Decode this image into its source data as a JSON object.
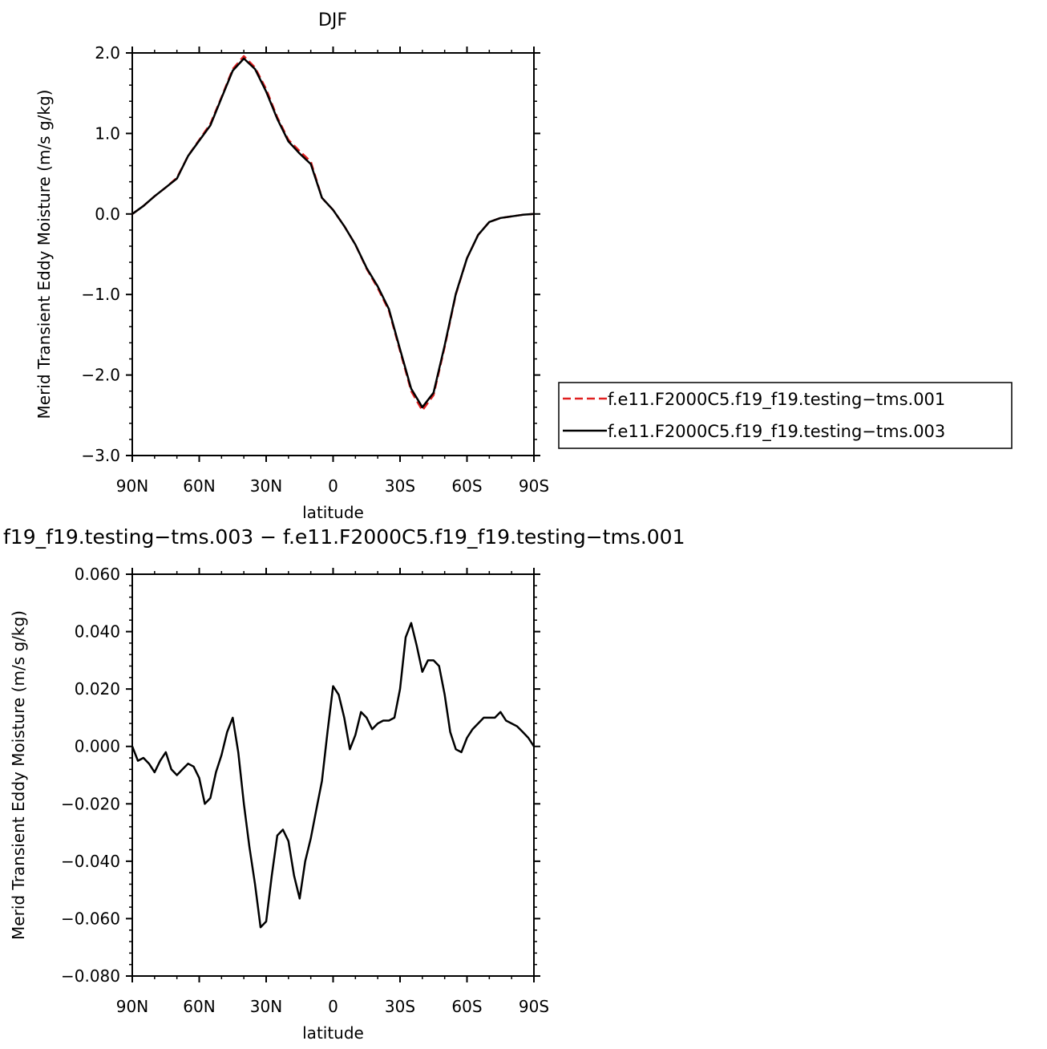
{
  "chart_data": [
    {
      "type": "line",
      "title": "DJF",
      "xlabel": "latitude",
      "ylabel": "Merid Transient Eddy Moisture (m/s g/kg)",
      "xlim": [
        90,
        -90
      ],
      "ylim": [
        -3.0,
        2.0
      ],
      "xticks": [
        {
          "value": 90,
          "label": "90N"
        },
        {
          "value": 60,
          "label": "60N"
        },
        {
          "value": 30,
          "label": "30N"
        },
        {
          "value": 0,
          "label": "0"
        },
        {
          "value": -30,
          "label": "30S"
        },
        {
          "value": -60,
          "label": "60S"
        },
        {
          "value": -90,
          "label": "90S"
        }
      ],
      "yticks": [
        {
          "value": 2.0,
          "label": "2.0"
        },
        {
          "value": 1.0,
          "label": "1.0"
        },
        {
          "value": 0.0,
          "label": "0.0"
        },
        {
          "value": -1.0,
          "label": "−1.0"
        },
        {
          "value": -2.0,
          "label": "−2.0"
        },
        {
          "value": -3.0,
          "label": "−3.0"
        }
      ],
      "legend_position": "right",
      "series": [
        {
          "name": "f.e11.F2000C5.f19_f19.testing−tms.001",
          "color": "#e02020",
          "dash": "dashed",
          "x": [
            90,
            85,
            80,
            75,
            70,
            65,
            60,
            55,
            50,
            45,
            40,
            35,
            30,
            25,
            20,
            15,
            10,
            5,
            0,
            -5,
            -10,
            -15,
            -20,
            -25,
            -30,
            -35,
            -40,
            -45,
            -50,
            -55,
            -60,
            -65,
            -70,
            -75,
            -80,
            -85,
            -90
          ],
          "y": [
            0.0,
            0.1,
            0.22,
            0.33,
            0.45,
            0.72,
            0.92,
            1.12,
            1.45,
            1.8,
            1.96,
            1.82,
            1.55,
            1.2,
            0.92,
            0.78,
            0.65,
            0.2,
            0.05,
            -0.15,
            -0.38,
            -0.68,
            -0.92,
            -1.2,
            -1.7,
            -2.2,
            -2.44,
            -2.25,
            -1.65,
            -1.0,
            -0.55,
            -0.26,
            -0.1,
            -0.05,
            -0.03,
            -0.01,
            0.0
          ]
        },
        {
          "name": "f.e11.F2000C5.f19_f19.testing−tms.003",
          "color": "#000000",
          "dash": "solid",
          "x": [
            90,
            85,
            80,
            75,
            70,
            65,
            60,
            55,
            50,
            45,
            40,
            35,
            30,
            25,
            20,
            15,
            10,
            5,
            0,
            -5,
            -10,
            -15,
            -20,
            -25,
            -30,
            -35,
            -40,
            -45,
            -50,
            -55,
            -60,
            -65,
            -70,
            -75,
            -80,
            -85,
            -90
          ],
          "y": [
            0.0,
            0.1,
            0.22,
            0.33,
            0.44,
            0.72,
            0.91,
            1.1,
            1.44,
            1.78,
            1.93,
            1.8,
            1.52,
            1.18,
            0.9,
            0.75,
            0.62,
            0.2,
            0.05,
            -0.15,
            -0.38,
            -0.67,
            -0.9,
            -1.18,
            -1.68,
            -2.17,
            -2.4,
            -2.22,
            -1.63,
            -0.99,
            -0.55,
            -0.26,
            -0.1,
            -0.05,
            -0.03,
            -0.01,
            0.0
          ]
        }
      ]
    },
    {
      "type": "line",
      "title": "f19_f19.testing−tms.003 − f.e11.F2000C5.f19_f19.testing−tms.001",
      "xlabel": "latitude",
      "ylabel": "Merid Transient Eddy Moisture (m/s g/kg)",
      "xlim": [
        90,
        -90
      ],
      "ylim": [
        -0.08,
        0.06
      ],
      "xticks": [
        {
          "value": 90,
          "label": "90N"
        },
        {
          "value": 60,
          "label": "60N"
        },
        {
          "value": 30,
          "label": "30N"
        },
        {
          "value": 0,
          "label": "0"
        },
        {
          "value": -30,
          "label": "30S"
        },
        {
          "value": -60,
          "label": "60S"
        },
        {
          "value": -90,
          "label": "90S"
        }
      ],
      "yticks": [
        {
          "value": 0.06,
          "label": "0.060"
        },
        {
          "value": 0.04,
          "label": "0.040"
        },
        {
          "value": 0.02,
          "label": "0.020"
        },
        {
          "value": 0.0,
          "label": "0.000"
        },
        {
          "value": -0.02,
          "label": "−0.020"
        },
        {
          "value": -0.04,
          "label": "−0.040"
        },
        {
          "value": -0.06,
          "label": "−0.060"
        },
        {
          "value": -0.08,
          "label": "−0.080"
        }
      ],
      "series": [
        {
          "color": "#000000",
          "dash": "solid",
          "x": [
            90,
            87.5,
            85,
            82.5,
            80,
            77.5,
            75,
            72.5,
            70,
            67.5,
            65,
            62.5,
            60,
            57.5,
            55,
            52.5,
            50,
            47.5,
            45,
            42.5,
            40,
            37.5,
            35,
            32.5,
            30,
            27.5,
            25,
            22.5,
            20,
            17.5,
            15,
            12.5,
            10,
            7.5,
            5,
            2.5,
            0,
            -2.5,
            -5,
            -7.5,
            -10,
            -12.5,
            -15,
            -17.5,
            -20,
            -22.5,
            -25,
            -27.5,
            -30,
            -32.5,
            -35,
            -37.5,
            -40,
            -42.5,
            -45,
            -47.5,
            -50,
            -52.5,
            -55,
            -57.5,
            -60,
            -62.5,
            -65,
            -67.5,
            -70,
            -72.5,
            -75,
            -77.5,
            -80,
            -82.5,
            -85,
            -87.5,
            -90
          ],
          "y": [
            0.0,
            -0.005,
            -0.004,
            -0.006,
            -0.009,
            -0.005,
            -0.002,
            -0.008,
            -0.01,
            -0.008,
            -0.006,
            -0.007,
            -0.011,
            -0.02,
            -0.018,
            -0.009,
            -0.003,
            0.005,
            0.01,
            -0.002,
            -0.02,
            -0.035,
            -0.048,
            -0.063,
            -0.061,
            -0.045,
            -0.031,
            -0.029,
            -0.033,
            -0.045,
            -0.053,
            -0.04,
            -0.032,
            -0.022,
            -0.012,
            0.005,
            0.021,
            0.018,
            0.01,
            -0.001,
            0.004,
            0.012,
            0.01,
            0.006,
            0.008,
            0.009,
            0.009,
            0.01,
            0.02,
            0.038,
            0.043,
            0.035,
            0.026,
            0.03,
            0.03,
            0.028,
            0.018,
            0.005,
            -0.001,
            -0.002,
            0.003,
            0.006,
            0.008,
            0.01,
            0.01,
            0.01,
            0.012,
            0.009,
            0.008,
            0.007,
            0.005,
            0.003,
            0.0
          ]
        }
      ]
    }
  ]
}
